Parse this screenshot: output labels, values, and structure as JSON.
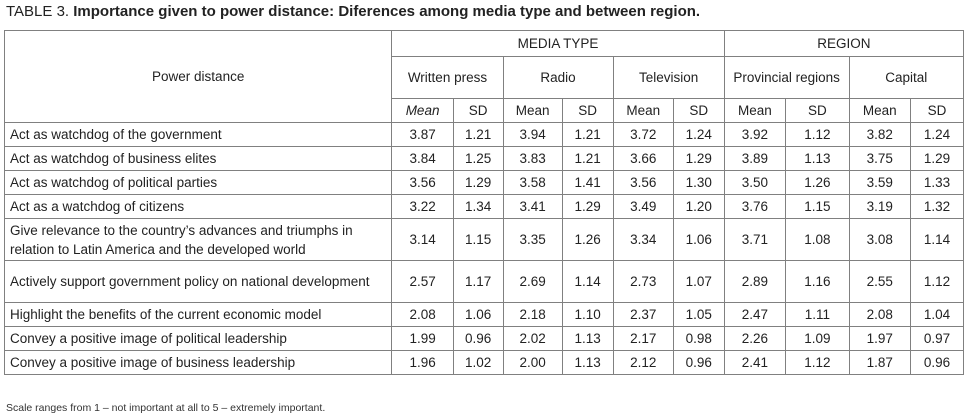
{
  "table": {
    "caption_label": "TABLE 3.",
    "caption_title": "Importance given to power distance: Diferences among media type and between region.",
    "row_header": "Power distance",
    "groups": {
      "media_type": "MEDIA TYPE",
      "region": "REGION"
    },
    "subgroups": {
      "written_press": "Written press",
      "radio": "Radio",
      "television": "Television",
      "provincial": "Provincial regions",
      "capital": "Capital"
    },
    "stat_labels": {
      "mean_italic": "Mean",
      "mean": "Mean",
      "sd": "SD"
    },
    "rows": [
      {
        "item": "Act as watchdog of the government",
        "values": [
          "3.87",
          "1.21",
          "3.94",
          "1.21",
          "3.72",
          "1.24",
          "3.92",
          "1.12",
          "3.82",
          "1.24"
        ]
      },
      {
        "item": "Act as watchdog of business elites",
        "values": [
          "3.84",
          "1.25",
          "3.83",
          "1.21",
          "3.66",
          "1.29",
          "3.89",
          "1.13",
          "3.75",
          "1.29"
        ]
      },
      {
        "item": "Act as watchdog of political parties",
        "values": [
          "3.56",
          "1.29",
          "3.58",
          "1.41",
          "3.56",
          "1.30",
          "3.50",
          "1.26",
          "3.59",
          "1.33"
        ]
      },
      {
        "item": "Act as a watchdog of citizens",
        "values": [
          "3.22",
          "1.34",
          "3.41",
          "1.29",
          "3.49",
          "1.20",
          "3.76",
          "1.15",
          "3.19",
          "1.32"
        ]
      },
      {
        "item": "Give relevance to the country’s advances and triumphs in relation to Latin America and the developed world",
        "values": [
          "3.14",
          "1.15",
          "3.35",
          "1.26",
          "3.34",
          "1.06",
          "3.71",
          "1.08",
          "3.08",
          "1.14"
        ]
      },
      {
        "item": "Actively support government policy on national development",
        "values": [
          "2.57",
          "1.17",
          "2.69",
          "1.14",
          "2.73",
          "1.07",
          "2.89",
          "1.16",
          "2.55",
          "1.12"
        ]
      },
      {
        "item": "Highlight the benefits of the current economic model",
        "values": [
          "2.08",
          "1.06",
          "2.18",
          "1.10",
          "2.37",
          "1.05",
          "2.47",
          "1.11",
          "2.08",
          "1.04"
        ]
      },
      {
        "item": "Convey a positive image of political leadership",
        "values": [
          "1.99",
          "0.96",
          "2.02",
          "1.13",
          "2.17",
          "0.98",
          "2.26",
          "1.09",
          "1.97",
          "0.97"
        ]
      },
      {
        "item": "Convey a positive image of business leadership",
        "values": [
          "1.96",
          "1.02",
          "2.00",
          "1.13",
          "2.12",
          "0.96",
          "2.41",
          "1.12",
          "1.87",
          "0.96"
        ]
      }
    ],
    "footnote": "Scale ranges from 1 – not important at all  to 5 – extremely important."
  }
}
